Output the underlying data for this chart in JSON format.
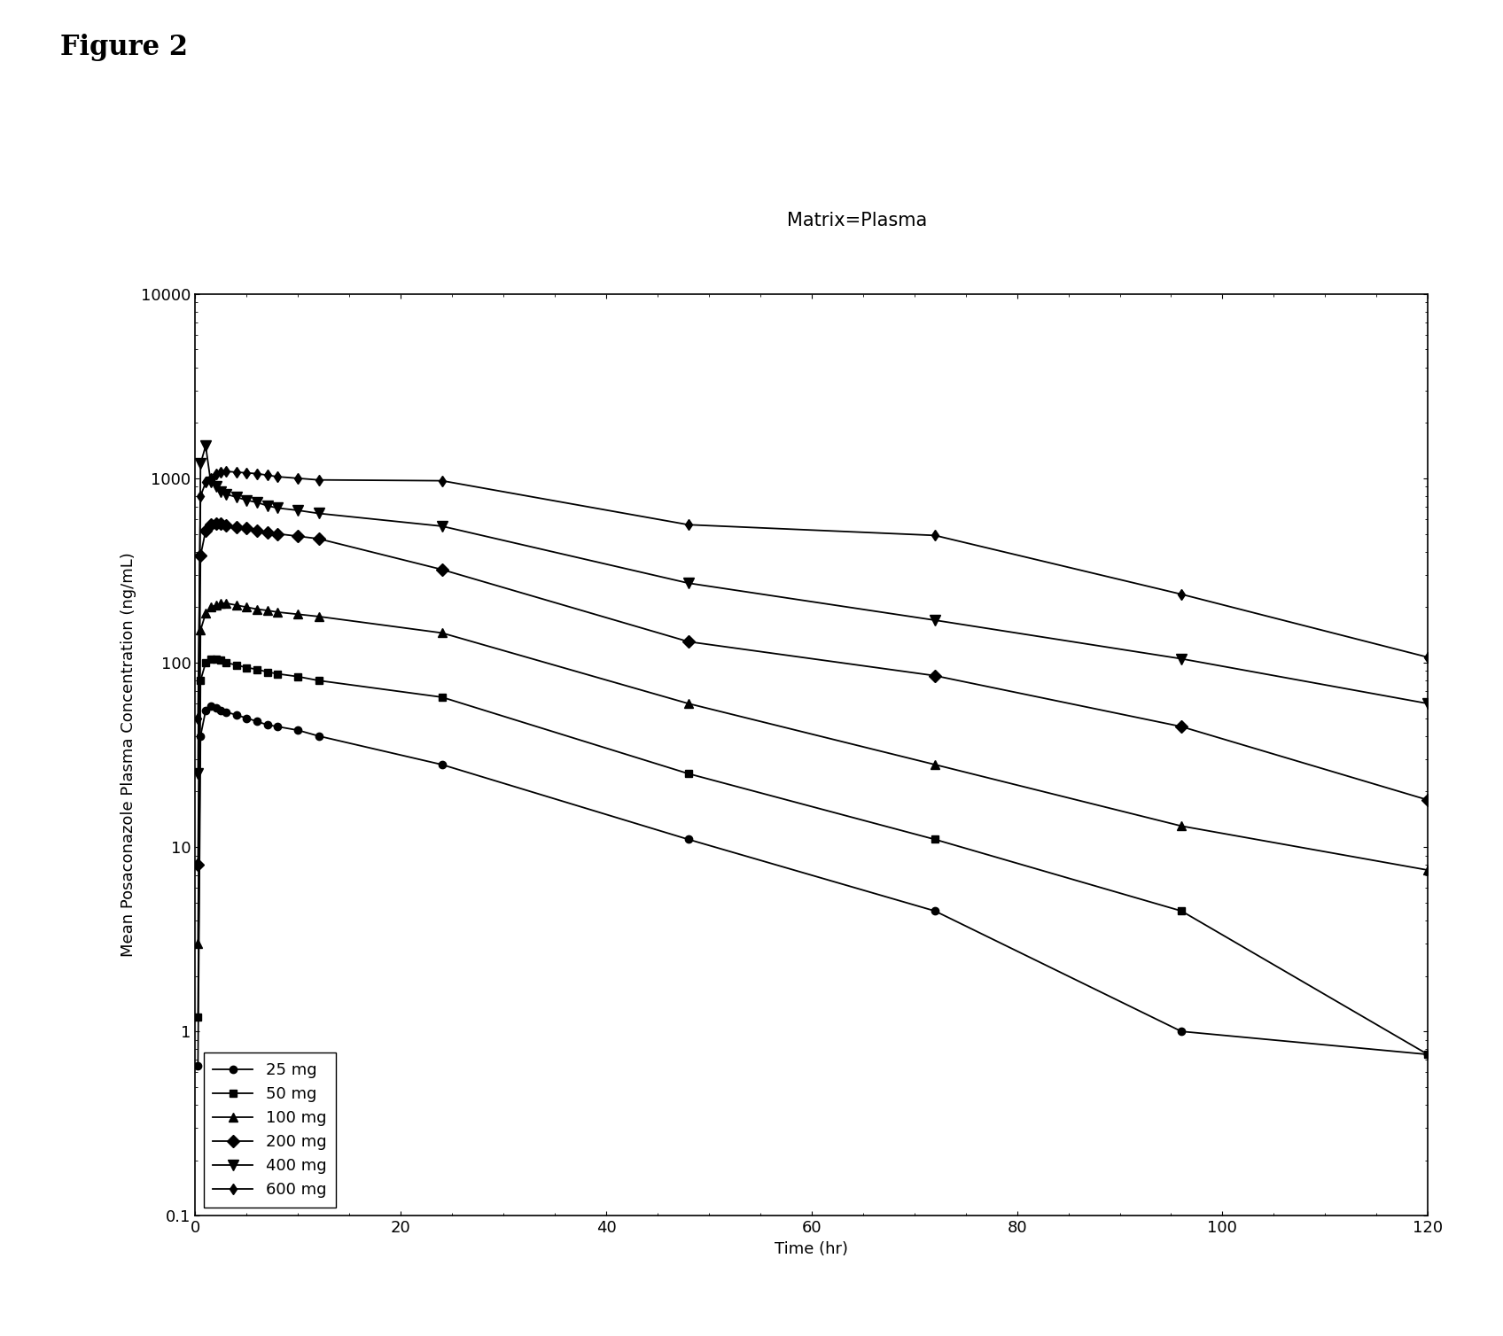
{
  "title_figure": "Figure 2",
  "subtitle": "Matrix=Plasma",
  "xlabel": "Time (hr)",
  "ylabel": "Mean Posaconazole Plasma Concentration (ng/mL)",
  "xlim": [
    0,
    120
  ],
  "ylim": [
    0.1,
    10000
  ],
  "background_color": "#ffffff",
  "series": [
    {
      "label": "25 mg",
      "marker": "o",
      "x": [
        0.25,
        0.5,
        1,
        1.5,
        2,
        2.5,
        3,
        4,
        5,
        6,
        7,
        8,
        10,
        12,
        24,
        48,
        72,
        96,
        120
      ],
      "y": [
        0.65,
        40,
        55,
        58,
        57,
        55,
        54,
        52,
        50,
        48,
        46,
        45,
        43,
        40,
        28,
        11,
        4.5,
        1.0,
        0.75
      ]
    },
    {
      "label": "50 mg",
      "marker": "s",
      "x": [
        0.25,
        0.5,
        1,
        1.5,
        2,
        2.5,
        3,
        4,
        5,
        6,
        7,
        8,
        10,
        12,
        24,
        48,
        72,
        96,
        120
      ],
      "y": [
        1.2,
        80,
        100,
        105,
        105,
        103,
        100,
        97,
        94,
        92,
        89,
        87,
        84,
        80,
        65,
        25,
        11,
        4.5,
        0.75
      ]
    },
    {
      "label": "100 mg",
      "marker": "^",
      "x": [
        0.25,
        0.5,
        1,
        1.5,
        2,
        2.5,
        3,
        4,
        5,
        6,
        7,
        8,
        10,
        12,
        24,
        48,
        72,
        96,
        120
      ],
      "y": [
        3,
        150,
        185,
        200,
        205,
        210,
        210,
        205,
        200,
        195,
        192,
        188,
        183,
        178,
        145,
        60,
        28,
        13,
        7.5
      ]
    },
    {
      "label": "200 mg",
      "marker": "D",
      "x": [
        0.25,
        0.5,
        1,
        1.5,
        2,
        2.5,
        3,
        4,
        5,
        6,
        7,
        8,
        10,
        12,
        24,
        48,
        72,
        96,
        120
      ],
      "y": [
        8,
        380,
        520,
        560,
        570,
        565,
        555,
        545,
        535,
        520,
        510,
        500,
        485,
        470,
        320,
        130,
        85,
        45,
        18
      ]
    },
    {
      "label": "400 mg",
      "marker": "v",
      "x": [
        0.25,
        0.5,
        1,
        1.5,
        2,
        2.5,
        3,
        4,
        5,
        6,
        7,
        8,
        10,
        12,
        24,
        48,
        72,
        96,
        120
      ],
      "y": [
        25,
        1200,
        1500,
        950,
        900,
        850,
        820,
        790,
        760,
        740,
        710,
        690,
        670,
        645,
        550,
        270,
        170,
        105,
        60
      ]
    },
    {
      "label": "600 mg",
      "marker": "d",
      "x": [
        0.25,
        0.5,
        1,
        1.5,
        2,
        2.5,
        3,
        4,
        5,
        6,
        7,
        8,
        10,
        12,
        24,
        48,
        72,
        96,
        120
      ],
      "y": [
        50,
        800,
        950,
        1000,
        1050,
        1080,
        1090,
        1080,
        1070,
        1060,
        1040,
        1020,
        1000,
        980,
        970,
        560,
        490,
        235,
        107
      ]
    }
  ],
  "legend_loc": "lower left",
  "xticks": [
    0,
    20,
    40,
    60,
    80,
    100,
    120
  ],
  "yticks": [
    0.1,
    1,
    10,
    100,
    1000,
    10000
  ],
  "ytick_labels": [
    "0.1",
    "1",
    "10",
    "100",
    "1000",
    "10000"
  ],
  "figure_label_fontsize": 22,
  "subtitle_fontsize": 15,
  "axis_label_fontsize": 13,
  "tick_fontsize": 13,
  "legend_fontsize": 13
}
